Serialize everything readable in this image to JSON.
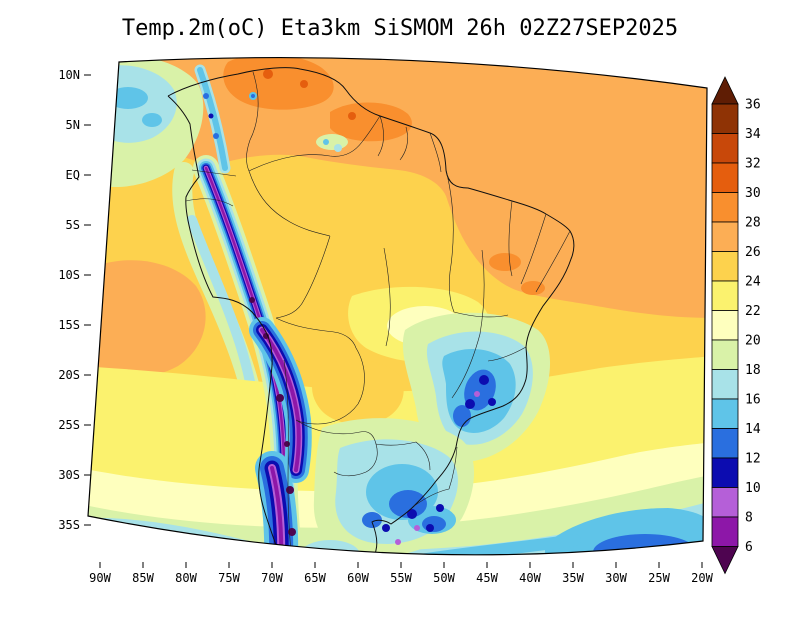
{
  "title": "Temp.2m(oC) Eta3km SiSMOM 26h 02Z27SEP2025",
  "axes": {
    "lat_labels": [
      "10N",
      "5N",
      "EQ",
      "5S",
      "10S",
      "15S",
      "20S",
      "25S",
      "30S",
      "35S"
    ],
    "lon_labels": [
      "90W",
      "85W",
      "80W",
      "75W",
      "70W",
      "65W",
      "60W",
      "55W",
      "50W",
      "45W",
      "40W",
      "35W",
      "30W",
      "25W",
      "20W"
    ]
  },
  "palette": {
    "gt36": "#5f1d04",
    "b34_36": "#8f3305",
    "b32_34": "#c8480a",
    "b30_32": "#e55e0e",
    "b28_30": "#f98f2e",
    "b26_28": "#fcae55",
    "b24_26": "#fdd24d",
    "b22_24": "#fbf26e",
    "b20_22": "#feffbe",
    "b18_20": "#d9f2a8",
    "b16_18": "#a8e2e8",
    "b14_16": "#5fc4e8",
    "b12_14": "#2a6fdf",
    "b10_12": "#0c0cb0",
    "b8_10": "#b55fd8",
    "b6_8": "#8d17a8",
    "lt6": "#4e0450"
  },
  "colorbar": {
    "levels_top_to_bottom": [
      "36",
      "34",
      "32",
      "30",
      "28",
      "26",
      "24",
      "22",
      "20",
      "18",
      "16",
      "14",
      "12",
      "10",
      "8",
      "6"
    ],
    "order": [
      "gt36",
      "b34_36",
      "b32_34",
      "b30_32",
      "b28_30",
      "b26_28",
      "b24_26",
      "b22_24",
      "b20_22",
      "b18_20",
      "b16_18",
      "b14_16",
      "b12_14",
      "b10_12",
      "b8_10",
      "b6_8",
      "lt6"
    ]
  },
  "chart_data": {
    "type": "heatmap",
    "title": "Temp.2m(oC) Eta3km SiSMOM 26h 02Z27SEP2025",
    "variable": "Temp.2m",
    "units": "oC",
    "model": "Eta3km",
    "system": "SiSMOM",
    "forecast_hour": "26h",
    "valid_time": "02Z27SEP2025",
    "region": "South America",
    "lat_ticks": [
      "10N",
      "5N",
      "EQ",
      "5S",
      "10S",
      "15S",
      "20S",
      "25S",
      "30S",
      "35S"
    ],
    "lon_ticks": [
      "90W",
      "85W",
      "80W",
      "75W",
      "70W",
      "65W",
      "60W",
      "55W",
      "50W",
      "45W",
      "40W",
      "35W",
      "30W",
      "25W",
      "20W"
    ],
    "levels": [
      6,
      8,
      10,
      12,
      14,
      16,
      18,
      20,
      22,
      24,
      26,
      28,
      30,
      32,
      34,
      36
    ],
    "legend_position": "right",
    "approx_field_readings_c": [
      {
        "area": "Tropical North Atlantic / Caribbean ocean",
        "value": "26-28"
      },
      {
        "area": "Llanos of Colombia / Venezuela",
        "value": "28-32"
      },
      {
        "area": "Amazon basin interior",
        "value": "24-26"
      },
      {
        "area": "Northeast Brazil interior and coast",
        "value": "26-30"
      },
      {
        "area": "Andes cordillera crest (Peru-Bolivia-Chile)",
        "value": "<6-10"
      },
      {
        "area": "Pacific off Ecuador/Peru coast (cool strip)",
        "value": "16-20"
      },
      {
        "area": "Pacific warm patch near 15S-20S 85W",
        "value": "26-28"
      },
      {
        "area": "Central Brazil plateau",
        "value": "20-24"
      },
      {
        "area": "Southeast Brazil highlands cold pool",
        "value": "10-16"
      },
      {
        "area": "Uruguay / Rio Grande do Sul / NE Argentina",
        "value": "8-14"
      },
      {
        "area": "South Atlantic 20S-30S",
        "value": "18-24"
      },
      {
        "area": "Far southeast Atlantic corner",
        "value": "10-16"
      },
      {
        "area": "Southern Chile / Patagonia Andes",
        "value": "<6-12"
      }
    ]
  }
}
